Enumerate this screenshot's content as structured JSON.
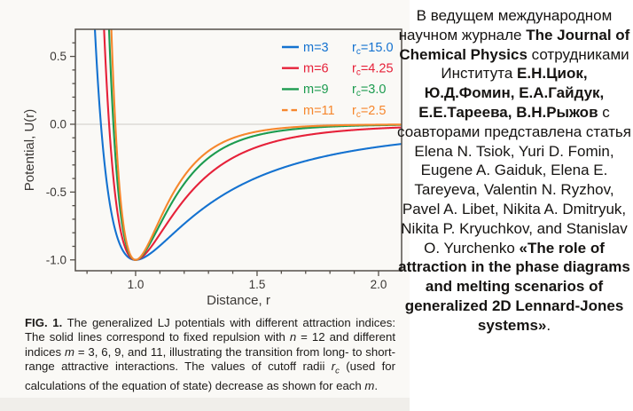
{
  "accent_colors": {
    "scan_background": "#faf9f6",
    "scan_bottom_edge": "#f0eeea",
    "frame": "#55504a",
    "tick_text": "#3b3835",
    "zero_line": "#cdcbc7"
  },
  "chart_data": {
    "type": "line",
    "title": "",
    "xlabel": "Distance, r",
    "ylabel": "Potential, U(r)",
    "xlim": [
      0.752,
      2.095
    ],
    "ylim": [
      -1.08,
      0.7
    ],
    "x_major_ticks": [
      1.0,
      1.5,
      2.0
    ],
    "x_tick_labels": [
      "1.0",
      "1.5",
      "2.0"
    ],
    "y_major_ticks": [
      0.5,
      0.0,
      -0.5,
      -1.0
    ],
    "y_tick_labels": [
      "0.5",
      "0.0",
      "-0.5",
      "-1.0"
    ],
    "minor_tick_step": 0.1,
    "grid": false,
    "zero_reference_line": 0.0,
    "legend_position": "top-right-inside",
    "model": "Generalized (Mie) Lennard-Jones potential U(r) = (1/(n-m))*(m*r^-n - n*r^-m), epsilon = 1, sigma = 1, fixed repulsion n = 12; all curves have minimum U = -1.0 at r = 1.0",
    "n": 12,
    "minimum": {
      "r": 1.0,
      "U": -1.0
    },
    "series": [
      {
        "name": "m=3",
        "m": 3,
        "rc_prefix": "r",
        "rc_sub": "c",
        "rc_value": "15.0",
        "color": "#1472d0",
        "style": "solid",
        "zero_crossing_r": 0.857
      },
      {
        "name": "m=6",
        "m": 6,
        "rc_prefix": "r",
        "rc_sub": "c",
        "rc_value": "4.25",
        "color": "#e62139",
        "style": "solid",
        "zero_crossing_r": 0.891
      },
      {
        "name": "m=9",
        "m": 9,
        "rc_prefix": "r",
        "rc_sub": "c",
        "rc_value": "3.0",
        "color": "#1c9b4f",
        "style": "solid",
        "zero_crossing_r": 0.909
      },
      {
        "name": "m=11",
        "m": 11,
        "rc_prefix": "r",
        "rc_sub": "c",
        "rc_value": "2.5",
        "color": "#f6872d",
        "style": "solid",
        "legend_dash": true,
        "zero_crossing_r": 0.917
      }
    ]
  },
  "figure": {
    "caption_segments": [
      {
        "t": "FIG. 1.",
        "b": true
      },
      {
        "t": " The generalized LJ potentials with different attraction indices: The solid lines correspond to fixed repulsion with "
      },
      {
        "t": "n",
        "i": true
      },
      {
        "t": " = 12 and different indices "
      },
      {
        "t": "m",
        "i": true
      },
      {
        "t": " = 3, 6, 9, and 11, illustrating the transition from long- to short-range attractive interactions. The values of cutoff radii "
      },
      {
        "t": "r",
        "i": true
      },
      {
        "t": "c",
        "i": true,
        "sub": true
      },
      {
        "t": " (used for calculations of the equation of state) decrease as shown for each "
      },
      {
        "t": "m",
        "i": true
      },
      {
        "t": "."
      }
    ]
  },
  "article_note": {
    "segments": [
      {
        "t": "В ведущем международном научном журнале "
      },
      {
        "t": "The Journal of Chemical Physics",
        "b": true
      },
      {
        "t": " сотрудниками Института "
      },
      {
        "t": "Е.Н.Циок, Ю.Д.Фомин, Е.А.Гайдук, Е.Е.Тареева, В.Н.Рыжов",
        "b": true
      },
      {
        "t": " с соавторами представлена статья Elena N. Tsiok, Yuri D. Fomin, Eugene A. Gaiduk, Elena E. Tareyeva, Valentin N. Ryzhov, Pavel A. Libet, Nikita A. Dmitryuk, Nikita P. Kryuchkov, and Stanislav O. Yurchenko "
      },
      {
        "t": "«The role of attraction in the phase diagrams and melting scenarios of generalized 2D Lennard-Jones systems»",
        "b": true
      },
      {
        "t": "."
      }
    ]
  }
}
